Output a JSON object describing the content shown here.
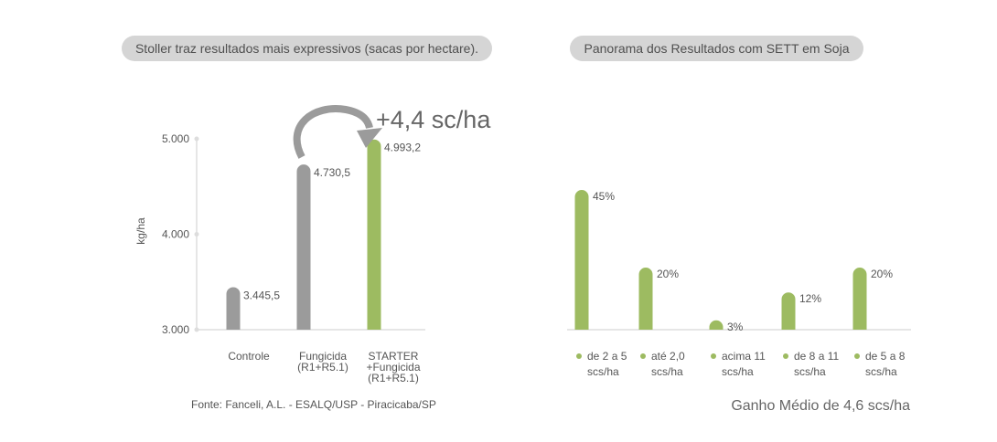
{
  "panels": {
    "left_title": "Stoller traz resultados mais expressivos (sacas por hectare).",
    "right_title": "Panorama dos Resultados com SETT em Soja"
  },
  "colors": {
    "gray_bar": "#9b9b9b",
    "green_bar": "#9dbb61",
    "axis": "#dddddd",
    "pill": "#d5d5d5",
    "arrow": "#9b9b9b"
  },
  "annotation": {
    "gain": "+4,4 sc/ha"
  },
  "chart_data": [
    {
      "type": "bar",
      "ylabel": "kg/ha",
      "ylim": [
        3000,
        5000
      ],
      "yticks": [
        3000,
        4000,
        5000
      ],
      "ytick_labels": [
        "3.000",
        "4.000",
        "5.000"
      ],
      "categories": [
        [
          "Controle"
        ],
        [
          "Fungicida",
          "(R1+R5.1)"
        ],
        [
          "STARTER",
          "+Fungicida",
          "(R1+R5.1)"
        ]
      ],
      "values": [
        3445.5,
        4730.5,
        4993.2
      ],
      "value_labels": [
        "3.445,5",
        "4.730,5",
        "4.993,2"
      ],
      "bar_colors": [
        "#9b9b9b",
        "#9b9b9b",
        "#9dbb61"
      ],
      "source": "Fonte: Fanceli, A.L. - ESALQ/USP - Piracicaba/SP"
    },
    {
      "type": "bar",
      "ylim": [
        0,
        50
      ],
      "categories": [
        [
          "de 2 a 5",
          "scs/ha"
        ],
        [
          "até 2,0",
          "scs/ha"
        ],
        [
          "acima 11",
          "scs/ha"
        ],
        [
          "de 8 a 11",
          "scs/ha"
        ],
        [
          "de 5 a 8",
          "scs/ha"
        ]
      ],
      "values": [
        45,
        20,
        3,
        12,
        20
      ],
      "value_labels": [
        "45%",
        "20%",
        "3%",
        "12%",
        "20%"
      ],
      "bar_color": "#9dbb61",
      "footer": "Ganho Médio de 4,6 scs/ha"
    }
  ]
}
